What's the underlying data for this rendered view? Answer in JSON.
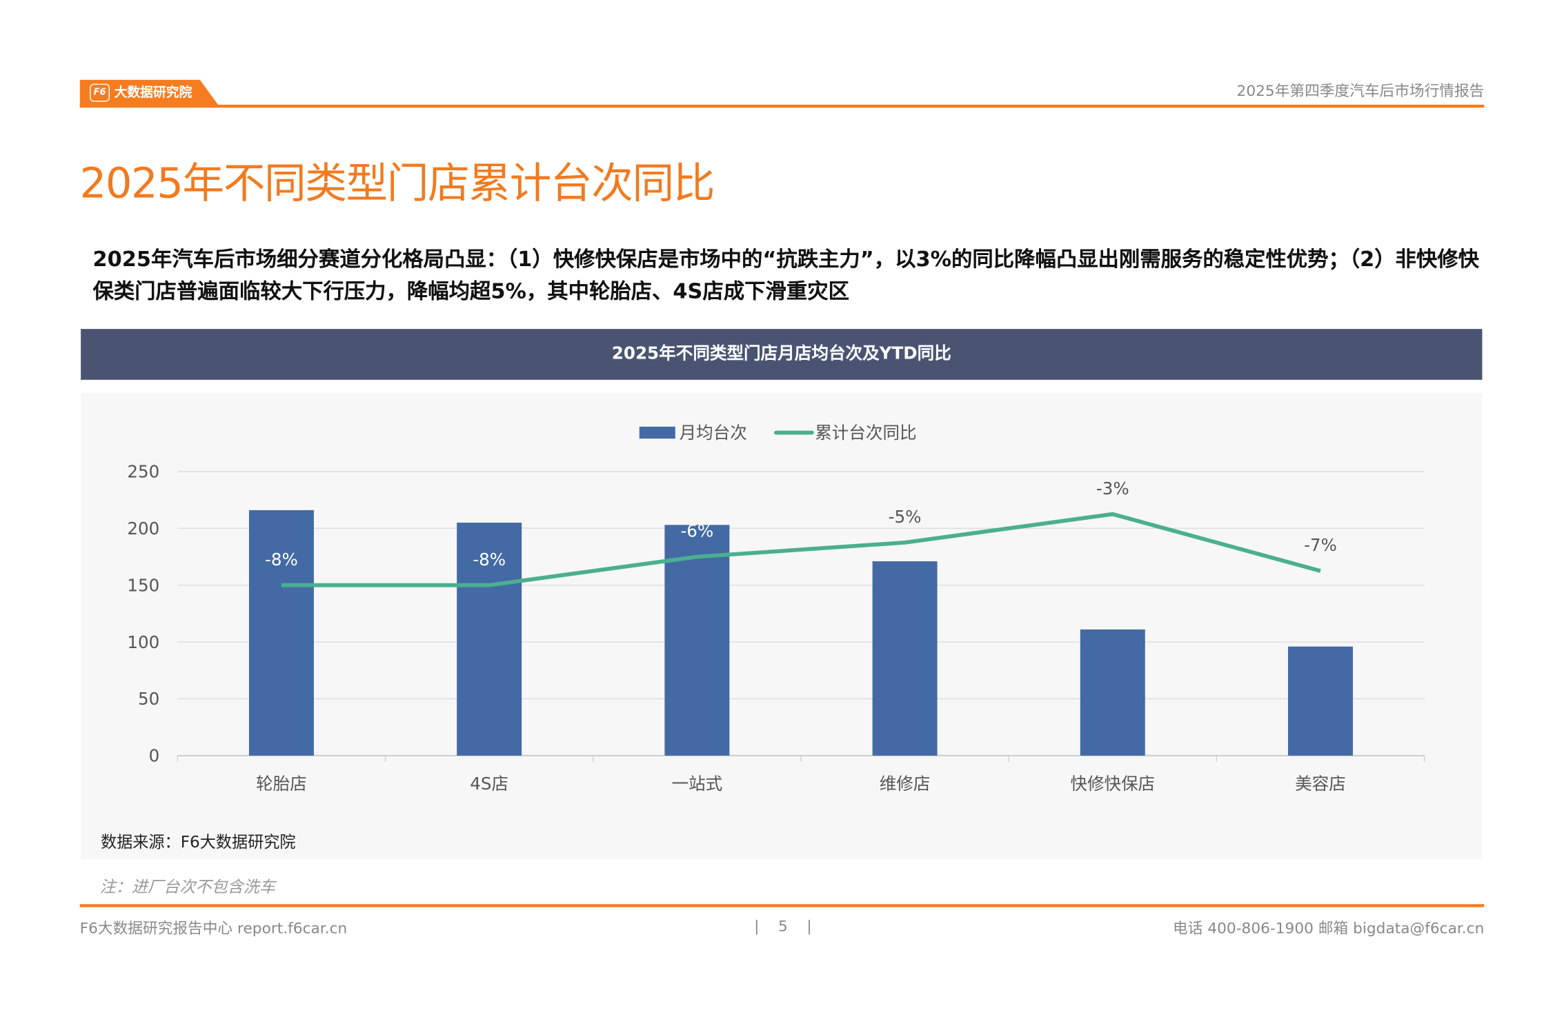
{
  "header": {
    "brand": "大数据研究院",
    "brand_logo_text": "F6",
    "report_name": "2025年第四季度汽车后市场行情报告"
  },
  "page_title": "2025年不同类型门店累计台次同比",
  "subtitle": "2025年汽车后市场细分赛道分化格局凸显：（1）快修快保店是市场中的“抗跌主力”，以3%的同比降幅凸显出刚需服务的稳定性优势；（2）非快修快保类门店普遍面临较大下行压力，降幅均超5%，其中轮胎店、4S店成下滑重灾区",
  "banner_title": "2025年不同类型门店月店均台次及YTD同比",
  "chart_data": {
    "type": "bar+line",
    "categories": [
      "轮胎店",
      "4S店",
      "一站式",
      "维修店",
      "快修快保店",
      "美容店"
    ],
    "series": [
      {
        "name": "月均台次",
        "type": "bar",
        "axis": "primary",
        "color": "#436AA4",
        "values": [
          216,
          205,
          203,
          171,
          111,
          96
        ]
      },
      {
        "name": "累计台次同比",
        "type": "line",
        "axis": "secondary",
        "color": "#4BAF8F",
        "values": [
          -0.08,
          -0.08,
          -0.06,
          -0.05,
          -0.03,
          -0.07
        ],
        "labels": [
          "-8%",
          "-8%",
          "-6%",
          "-5%",
          "-3%",
          "-7%"
        ]
      }
    ],
    "ylim": [
      0,
      250
    ],
    "yticks": [
      "0",
      "50",
      "100",
      "150",
      "200",
      "250"
    ],
    "ylim_secondary": [
      -0.2,
      0
    ],
    "secondary_axis_visible": false,
    "grid": true,
    "legend": "top"
  },
  "source": "数据来源：F6大数据研究院",
  "note": "注：进厂台次不包含洗车",
  "footer": {
    "left": "F6大数据研究报告中心 report.f6car.cn",
    "page": "5",
    "right": "电话 400-806-1900  邮箱 bigdata@f6car.cn"
  }
}
